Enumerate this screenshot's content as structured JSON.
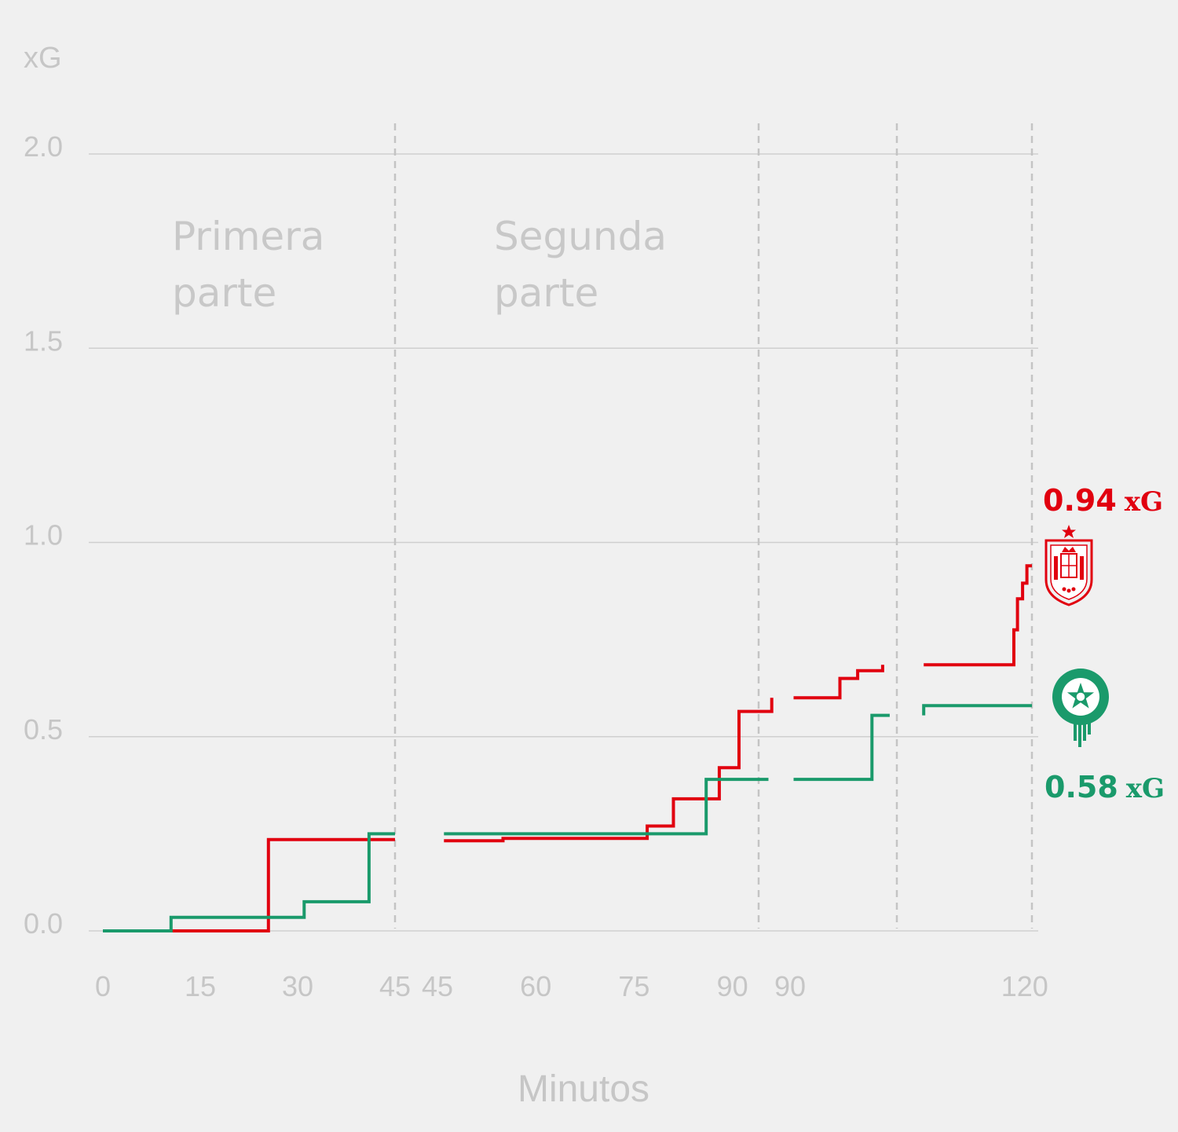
{
  "colors": {
    "background": "#f0f0f0",
    "grid": "#cfcfcf",
    "text": "#c6c6c6",
    "divider": "#c4c4c4",
    "spain": "#e1000f",
    "morocco": "#1a9a6b"
  },
  "icons": {
    "spain": "spain-crest-icon",
    "morocco": "morocco-crest-icon"
  },
  "chart_data": {
    "type": "line",
    "step": true,
    "ylabel": "xG",
    "xlabel": "Minutos",
    "ylim": [
      0,
      2.0
    ],
    "yticks": [
      "0.0",
      "0.5",
      "1.0",
      "1.5",
      "2.0"
    ],
    "grid": true,
    "periods": [
      {
        "label_lines": [
          "Primera",
          "parte"
        ],
        "range": [
          0,
          45
        ],
        "tick_values": [
          0,
          15,
          30,
          45
        ]
      },
      {
        "label_lines": [
          "Segunda",
          "parte"
        ],
        "range": [
          45,
          94
        ],
        "tick_values": [
          45,
          60,
          75,
          90
        ]
      },
      {
        "label_lines": [],
        "range": [
          90,
          105
        ],
        "tick_values": [
          90
        ]
      },
      {
        "label_lines": [],
        "range": [
          105,
          121
        ],
        "tick_values": [
          120
        ]
      }
    ],
    "series": [
      {
        "team": "spain",
        "final_value": "0.94",
        "final_unit": "xG",
        "segments": [
          {
            "period": 0,
            "points": [
              [
                10.5,
                0.0
              ],
              [
                25.5,
                0.0
              ],
              [
                25.5,
                0.235
              ],
              [
                45,
                0.235
              ]
            ]
          },
          {
            "period": 1,
            "points": [
              [
                46,
                0.232
              ],
              [
                55,
                0.232
              ],
              [
                55,
                0.238
              ],
              [
                77,
                0.238
              ],
              [
                77,
                0.27
              ],
              [
                81,
                0.27
              ],
              [
                81,
                0.34
              ],
              [
                88,
                0.34
              ],
              [
                88,
                0.42
              ],
              [
                91,
                0.42
              ],
              [
                91,
                0.565
              ],
              [
                96,
                0.565
              ],
              [
                96,
                0.6
              ]
            ]
          },
          {
            "period": 2,
            "points": [
              [
                90.5,
                0.6
              ],
              [
                97,
                0.6
              ],
              [
                97,
                0.65
              ],
              [
                99.5,
                0.65
              ],
              [
                99.5,
                0.67
              ],
              [
                103,
                0.67
              ],
              [
                103,
                0.685
              ]
            ]
          },
          {
            "period": 3,
            "points": [
              [
                106,
                0.685
              ],
              [
                118.5,
                0.685
              ],
              [
                118.5,
                0.775
              ],
              [
                119,
                0.775
              ],
              [
                119,
                0.855
              ],
              [
                119.7,
                0.855
              ],
              [
                119.7,
                0.895
              ],
              [
                120.3,
                0.895
              ],
              [
                120.3,
                0.94
              ],
              [
                121,
                0.94
              ]
            ]
          }
        ]
      },
      {
        "team": "morocco",
        "final_value": "0.58",
        "final_unit": "xG",
        "segments": [
          {
            "period": 0,
            "points": [
              [
                0,
                0.0
              ],
              [
                10.5,
                0.0
              ],
              [
                10.5,
                0.035
              ],
              [
                31,
                0.035
              ],
              [
                31,
                0.075
              ],
              [
                41,
                0.075
              ],
              [
                41,
                0.25
              ],
              [
                45,
                0.25
              ]
            ]
          },
          {
            "period": 1,
            "points": [
              [
                46,
                0.25
              ],
              [
                86,
                0.25
              ],
              [
                86,
                0.39
              ],
              [
                95.5,
                0.39
              ]
            ]
          },
          {
            "period": 2,
            "points": [
              [
                90.5,
                0.39
              ],
              [
                101.5,
                0.39
              ],
              [
                101.5,
                0.555
              ],
              [
                104,
                0.555
              ]
            ]
          },
          {
            "period": 3,
            "points": [
              [
                106,
                0.555
              ],
              [
                106,
                0.58
              ],
              [
                121,
                0.58
              ]
            ]
          }
        ]
      }
    ]
  }
}
